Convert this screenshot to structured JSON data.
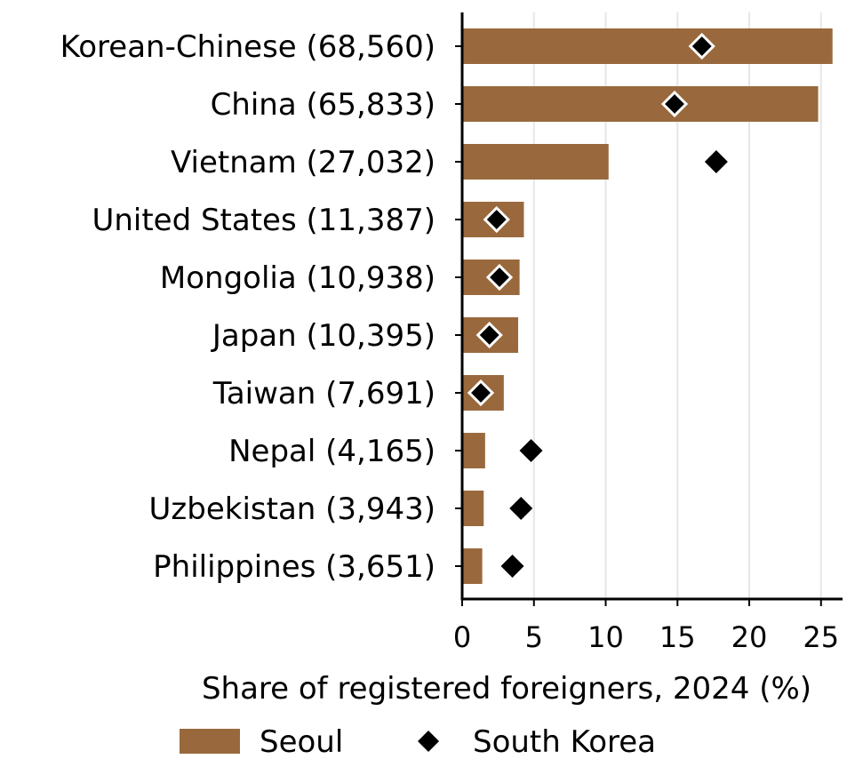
{
  "chart_data": {
    "type": "bar",
    "orientation": "horizontal",
    "categories": [
      "Korean-Chinese (68,560)",
      "China (65,833)",
      "Vietnam (27,032)",
      "United States (11,387)",
      "Mongolia (10,938)",
      "Japan (10,395)",
      "Taiwan (7,691)",
      "Nepal (4,165)",
      "Uzbekistan (3,943)",
      "Philippines (3,651)"
    ],
    "series": [
      {
        "name": "Seoul",
        "kind": "bar",
        "color": "#99693d",
        "values": [
          25.8,
          24.8,
          10.2,
          4.3,
          4.0,
          3.9,
          2.9,
          1.6,
          1.5,
          1.4
        ]
      },
      {
        "name": "South Korea",
        "kind": "marker",
        "marker": "diamond",
        "color": "#000000",
        "values": [
          16.7,
          14.8,
          17.7,
          2.4,
          2.6,
          1.9,
          1.3,
          4.8,
          4.1,
          3.5
        ]
      }
    ],
    "xlabel": "Share of registered foreigners, 2024 (%)",
    "ylabel": "",
    "xlim": [
      0,
      26.5
    ],
    "xticks": [
      "0",
      "5",
      "10",
      "15",
      "20",
      "25"
    ],
    "xtick_values": [
      0,
      5,
      10,
      15,
      20,
      25
    ],
    "grid": "vertical",
    "legend_placement": "bottom"
  }
}
